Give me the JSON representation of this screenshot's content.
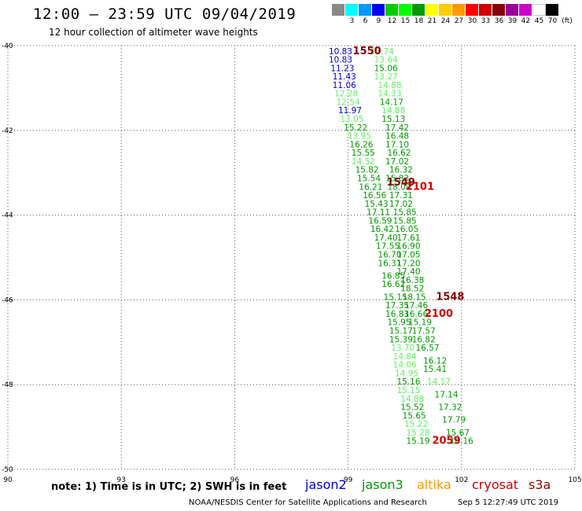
{
  "header": {
    "title": "12:00 – 23:59 UTC 09/04/2019",
    "subtitle": "12 hour collection of altimeter wave heights"
  },
  "color_scale": {
    "unit": "(ft)",
    "colors": [
      "#888888",
      "#00ffff",
      "#0099ff",
      "#0000ee",
      "#00cc00",
      "#00ff00",
      "#009900",
      "#ffff00",
      "#ffcc00",
      "#ff9900",
      "#ff0000",
      "#cc0000",
      "#880000",
      "#990099",
      "#cc00cc",
      "#ffffff",
      "#000000"
    ],
    "labels": [
      "3",
      "6",
      "9",
      "12",
      "15",
      "18",
      "21",
      "24",
      "27",
      "30",
      "33",
      "36",
      "39",
      "42",
      "45",
      "70"
    ]
  },
  "note": "note: 1) Time is in UTC; 2) SWH is in feet",
  "legend": [
    {
      "name": "jason2",
      "color": "#0000cc"
    },
    {
      "name": "jason3",
      "color": "#009900"
    },
    {
      "name": "altika",
      "color": "#ff9900"
    },
    {
      "name": "cryosat",
      "color": "#cc0000"
    },
    {
      "name": "s3a",
      "color": "#880000"
    }
  ],
  "footer": {
    "credit": "NOAA/NESDIS Center for Satellite Applications and Research",
    "timestamp": "Sep  5 12:27:49 UTC 2019"
  },
  "chart_data": {
    "type": "scatter",
    "xlim": [
      90,
      105
    ],
    "ylim": [
      -50,
      -40
    ],
    "x_ticks": [
      "90",
      "93",
      "96",
      "99",
      "102",
      "105"
    ],
    "y_ticks": [
      "-40",
      "-42",
      "-44",
      "-46",
      "-48",
      "-50"
    ],
    "grid": true,
    "colors": {
      "blue": "#0000cc",
      "green": "#009900",
      "light": "#66ee66",
      "darkred": "#880000",
      "red": "#cc0000"
    },
    "points": [
      {
        "x": 99.9,
        "y": -40.2,
        "label": "13.74",
        "c": "light"
      },
      {
        "x": 100.0,
        "y": -40.4,
        "label": "13.64",
        "c": "light"
      },
      {
        "x": 100.0,
        "y": -40.6,
        "label": "15.06",
        "c": "green"
      },
      {
        "x": 100.0,
        "y": -40.8,
        "label": "13.27",
        "c": "light"
      },
      {
        "x": 100.1,
        "y": -41.0,
        "label": "14.88",
        "c": "light"
      },
      {
        "x": 100.1,
        "y": -41.2,
        "label": "14.33",
        "c": "light"
      },
      {
        "x": 100.15,
        "y": -41.4,
        "label": "14.17",
        "c": "green"
      },
      {
        "x": 100.2,
        "y": -41.6,
        "label": "14.88",
        "c": "light"
      },
      {
        "x": 100.2,
        "y": -41.8,
        "label": "15.13",
        "c": "green"
      },
      {
        "x": 100.3,
        "y": -42.0,
        "label": "17.42",
        "c": "green"
      },
      {
        "x": 100.3,
        "y": -42.2,
        "label": "16.48",
        "c": "green"
      },
      {
        "x": 100.3,
        "y": -42.4,
        "label": "17.10",
        "c": "green"
      },
      {
        "x": 100.35,
        "y": -42.6,
        "label": "16.62",
        "c": "green"
      },
      {
        "x": 100.3,
        "y": -42.8,
        "label": "17.02",
        "c": "green"
      },
      {
        "x": 100.4,
        "y": -43.0,
        "label": "16.32",
        "c": "green"
      },
      {
        "x": 100.3,
        "y": -43.2,
        "label": "15.83",
        "c": "green"
      },
      {
        "x": 100.35,
        "y": -43.4,
        "label": "18.04",
        "c": "green"
      },
      {
        "x": 100.4,
        "y": -43.6,
        "label": "17.31",
        "c": "green"
      },
      {
        "x": 100.4,
        "y": -43.8,
        "label": "17.02",
        "c": "green"
      },
      {
        "x": 100.5,
        "y": -44.0,
        "label": "15.85",
        "c": "green"
      },
      {
        "x": 100.5,
        "y": -44.2,
        "label": "15.85",
        "c": "green"
      },
      {
        "x": 100.55,
        "y": -44.4,
        "label": "16.05",
        "c": "green"
      },
      {
        "x": 100.6,
        "y": -44.6,
        "label": "17.61",
        "c": "green"
      },
      {
        "x": 100.6,
        "y": -44.8,
        "label": "16.90",
        "c": "green"
      },
      {
        "x": 100.6,
        "y": -45.0,
        "label": "17.05",
        "c": "green"
      },
      {
        "x": 100.6,
        "y": -45.2,
        "label": "17.20",
        "c": "green"
      },
      {
        "x": 100.6,
        "y": -45.4,
        "label": "17.40",
        "c": "green"
      },
      {
        "x": 100.7,
        "y": -45.6,
        "label": "16.38",
        "c": "green"
      },
      {
        "x": 100.7,
        "y": -45.8,
        "label": "18.52",
        "c": "green"
      },
      {
        "x": 100.75,
        "y": -46.0,
        "label": "18.15",
        "c": "green"
      },
      {
        "x": 100.8,
        "y": -46.2,
        "label": "17.46",
        "c": "green"
      },
      {
        "x": 100.8,
        "y": -46.4,
        "label": "16.66",
        "c": "green"
      },
      {
        "x": 100.9,
        "y": -46.6,
        "label": "15.19",
        "c": "green"
      },
      {
        "x": 101.0,
        "y": -46.8,
        "label": "17.57",
        "c": "green"
      },
      {
        "x": 101.0,
        "y": -47.0,
        "label": "16.82",
        "c": "green"
      },
      {
        "x": 101.1,
        "y": -47.2,
        "label": "16.57",
        "c": "green"
      },
      {
        "x": 101.3,
        "y": -47.5,
        "label": "16.12",
        "c": "green"
      },
      {
        "x": 101.3,
        "y": -47.7,
        "label": "15.41",
        "c": "green"
      },
      {
        "x": 101.4,
        "y": -48.0,
        "label": "14.17",
        "c": "light"
      },
      {
        "x": 101.6,
        "y": -48.3,
        "label": "17.14",
        "c": "green"
      },
      {
        "x": 101.7,
        "y": -48.6,
        "label": "17.32",
        "c": "green"
      },
      {
        "x": 101.8,
        "y": -48.9,
        "label": "17.79",
        "c": "green"
      },
      {
        "x": 101.9,
        "y": -49.2,
        "label": "15.67",
        "c": "green"
      },
      {
        "x": 102.0,
        "y": -49.4,
        "label": "16.16",
        "c": "green"
      },
      {
        "x": 98.8,
        "y": -40.2,
        "label": "10.83",
        "c": "blue"
      },
      {
        "x": 98.8,
        "y": -40.4,
        "label": "10.83",
        "c": "blue"
      },
      {
        "x": 98.85,
        "y": -40.6,
        "label": "11.23",
        "c": "blue"
      },
      {
        "x": 98.9,
        "y": -40.8,
        "label": "11.43",
        "c": "blue"
      },
      {
        "x": 98.9,
        "y": -41.0,
        "label": "11.06",
        "c": "blue"
      },
      {
        "x": 98.95,
        "y": -41.2,
        "label": "12.28",
        "c": "light"
      },
      {
        "x": 99.0,
        "y": -41.4,
        "label": "12.54",
        "c": "light"
      },
      {
        "x": 99.05,
        "y": -41.6,
        "label": "11.97",
        "c": "blue"
      },
      {
        "x": 99.1,
        "y": -41.8,
        "label": "13.05",
        "c": "light"
      },
      {
        "x": 99.2,
        "y": -42.0,
        "label": "15.22",
        "c": "green"
      },
      {
        "x": 99.3,
        "y": -42.2,
        "label": "13.95",
        "c": "light"
      },
      {
        "x": 99.35,
        "y": -42.4,
        "label": "16.26",
        "c": "green"
      },
      {
        "x": 99.4,
        "y": -42.6,
        "label": "15.55",
        "c": "green"
      },
      {
        "x": 99.4,
        "y": -42.8,
        "label": "14.52",
        "c": "light"
      },
      {
        "x": 99.5,
        "y": -43.0,
        "label": "15.82",
        "c": "green"
      },
      {
        "x": 99.55,
        "y": -43.2,
        "label": "15.54",
        "c": "green"
      },
      {
        "x": 99.6,
        "y": -43.4,
        "label": "16.21",
        "c": "green"
      },
      {
        "x": 99.7,
        "y": -43.6,
        "label": "16.56",
        "c": "green"
      },
      {
        "x": 99.75,
        "y": -43.8,
        "label": "15.43",
        "c": "green"
      },
      {
        "x": 99.8,
        "y": -44.0,
        "label": "17.11",
        "c": "green"
      },
      {
        "x": 99.85,
        "y": -44.2,
        "label": "16.59",
        "c": "green"
      },
      {
        "x": 99.9,
        "y": -44.4,
        "label": "16.42",
        "c": "green"
      },
      {
        "x": 100.0,
        "y": -44.6,
        "label": "17.40",
        "c": "green"
      },
      {
        "x": 100.05,
        "y": -44.8,
        "label": "17.55",
        "c": "green"
      },
      {
        "x": 100.1,
        "y": -45.0,
        "label": "16.70",
        "c": "green"
      },
      {
        "x": 100.1,
        "y": -45.2,
        "label": "16.31",
        "c": "green"
      },
      {
        "x": 100.2,
        "y": -45.5,
        "label": "16.85",
        "c": "green"
      },
      {
        "x": 100.2,
        "y": -45.7,
        "label": "16.62",
        "c": "green"
      },
      {
        "x": 100.25,
        "y": -46.0,
        "label": "15.15",
        "c": "green"
      },
      {
        "x": 100.3,
        "y": -46.2,
        "label": "17.35",
        "c": "green"
      },
      {
        "x": 100.3,
        "y": -46.4,
        "label": "16.83",
        "c": "green"
      },
      {
        "x": 100.35,
        "y": -46.6,
        "label": "15.95",
        "c": "green"
      },
      {
        "x": 100.4,
        "y": -46.8,
        "label": "15.17",
        "c": "green"
      },
      {
        "x": 100.4,
        "y": -47.0,
        "label": "15.39",
        "c": "green"
      },
      {
        "x": 100.45,
        "y": -47.2,
        "label": "13.70",
        "c": "light"
      },
      {
        "x": 100.5,
        "y": -47.4,
        "label": "14.84",
        "c": "light"
      },
      {
        "x": 100.5,
        "y": -47.6,
        "label": "14.06",
        "c": "light"
      },
      {
        "x": 100.55,
        "y": -47.8,
        "label": "14.95",
        "c": "light"
      },
      {
        "x": 100.6,
        "y": -48.0,
        "label": "15.16",
        "c": "green"
      },
      {
        "x": 100.6,
        "y": -48.2,
        "label": "15.15",
        "c": "light"
      },
      {
        "x": 100.7,
        "y": -48.4,
        "label": "14.88",
        "c": "light"
      },
      {
        "x": 100.7,
        "y": -48.6,
        "label": "15.52",
        "c": "green"
      },
      {
        "x": 100.75,
        "y": -48.8,
        "label": "15.65",
        "c": "green"
      },
      {
        "x": 100.8,
        "y": -49.0,
        "label": "15.22",
        "c": "light"
      },
      {
        "x": 100.85,
        "y": -49.2,
        "label": "15.28",
        "c": "light"
      },
      {
        "x": 100.85,
        "y": -49.4,
        "label": "15.19",
        "c": "green"
      }
    ],
    "markers": [
      {
        "x": 99.5,
        "y": -40.2,
        "label": "1550",
        "c": "darkred"
      },
      {
        "x": 100.4,
        "y": -43.3,
        "label": "1549",
        "c": "darkred"
      },
      {
        "x": 100.9,
        "y": -43.4,
        "label": "2101",
        "c": "red"
      },
      {
        "x": 101.7,
        "y": -46.0,
        "label": "1548",
        "c": "darkred"
      },
      {
        "x": 101.4,
        "y": -46.4,
        "label": "2100",
        "c": "red"
      },
      {
        "x": 101.6,
        "y": -49.4,
        "label": "2059",
        "c": "red"
      }
    ]
  }
}
